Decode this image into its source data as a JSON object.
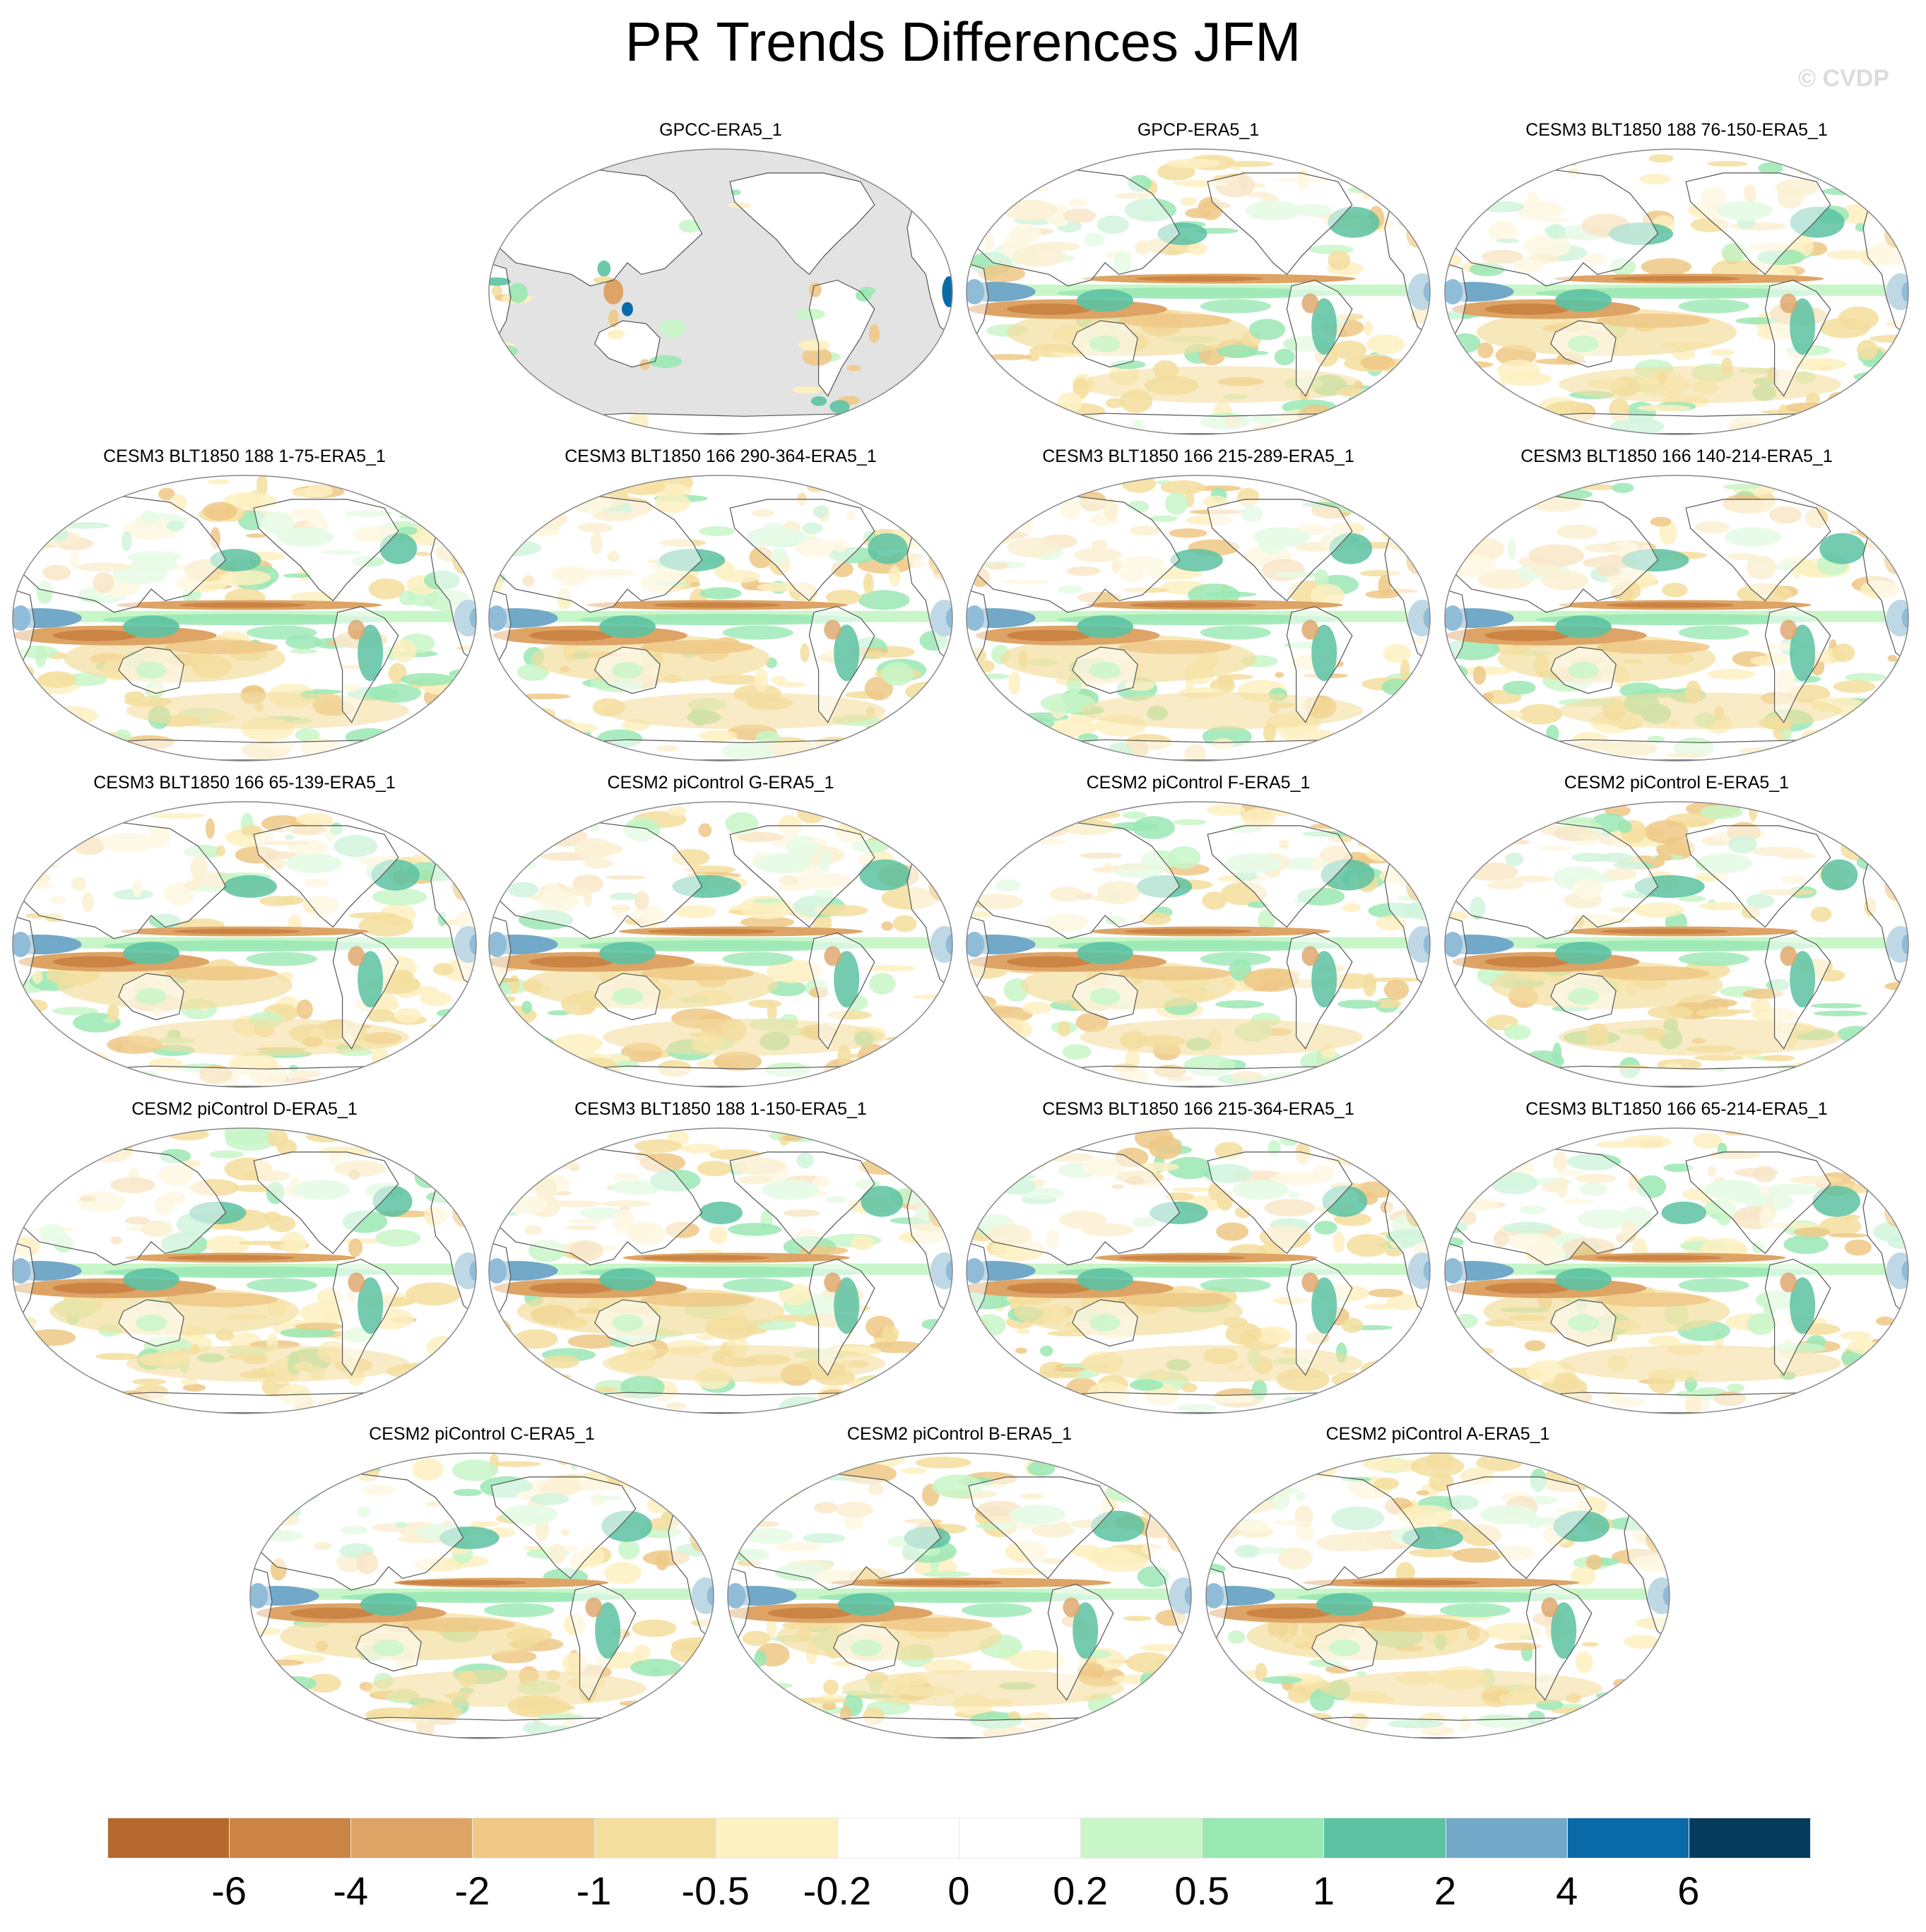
{
  "title": "PR Trends Differences JFM",
  "credit": "© CVDP",
  "legend": {
    "labels": [
      "-6",
      "-4",
      "-2",
      "-1",
      "-0.5",
      "-0.2",
      "0",
      "0.2",
      "0.5",
      "1",
      "2",
      "4",
      "6"
    ],
    "colors": [
      "#b5692e",
      "#cc8444",
      "#dda466",
      "#efc886",
      "#f4de9e",
      "#fdf0c1",
      "#ffffff",
      "#ffffff",
      "#c8f6c8",
      "#9ae8b4",
      "#5cc2a2",
      "#72a8c8",
      "#0a6aa8",
      "#063b5e"
    ]
  },
  "colors": {
    "land_outline": "#555555",
    "missing": "#e3e3e3",
    "frame": "#888888"
  },
  "panels": [
    {
      "label": "GPCC-ERA5_1",
      "land_only": true
    },
    {
      "label": "GPCP-ERA5_1"
    },
    {
      "label": "CESM3 BLT1850 188 76-150-ERA5_1"
    },
    {
      "label": "CESM3 BLT1850 188 1-75-ERA5_1"
    },
    {
      "label": "CESM3 BLT1850 166 290-364-ERA5_1"
    },
    {
      "label": "CESM3 BLT1850 166 215-289-ERA5_1"
    },
    {
      "label": "CESM3 BLT1850 166 140-214-ERA5_1"
    },
    {
      "label": "CESM3 BLT1850 166 65-139-ERA5_1"
    },
    {
      "label": "CESM2 piControl G-ERA5_1"
    },
    {
      "label": "CESM2 piControl F-ERA5_1"
    },
    {
      "label": "CESM2 piControl E-ERA5_1"
    },
    {
      "label": "CESM2 piControl D-ERA5_1"
    },
    {
      "label": "CESM3 BLT1850 188 1-150-ERA5_1"
    },
    {
      "label": "CESM3 BLT1850 166 215-364-ERA5_1"
    },
    {
      "label": "CESM3 BLT1850 166 65-214-ERA5_1"
    },
    {
      "label": "CESM2 piControl C-ERA5_1"
    },
    {
      "label": "CESM2 piControl B-ERA5_1"
    },
    {
      "label": "CESM2 piControl A-ERA5_1"
    }
  ]
}
